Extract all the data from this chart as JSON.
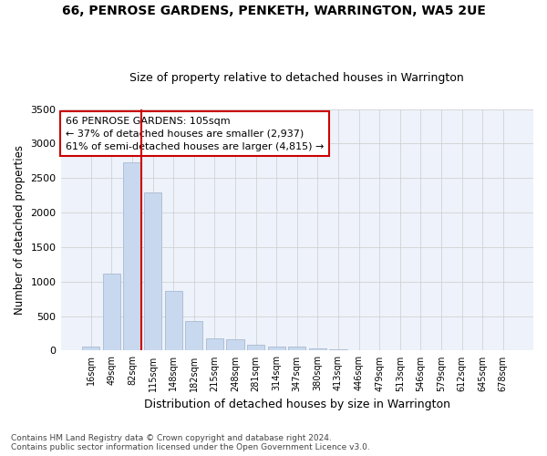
{
  "title": "66, PENROSE GARDENS, PENKETH, WARRINGTON, WA5 2UE",
  "subtitle": "Size of property relative to detached houses in Warrington",
  "xlabel": "Distribution of detached houses by size in Warrington",
  "ylabel": "Number of detached properties",
  "bar_color": "#c8d8ee",
  "bar_edgecolor": "#aabbd0",
  "grid_color": "#cccccc",
  "bg_color": "#eef2fa",
  "categories": [
    "16sqm",
    "49sqm",
    "82sqm",
    "115sqm",
    "148sqm",
    "182sqm",
    "215sqm",
    "248sqm",
    "281sqm",
    "314sqm",
    "347sqm",
    "380sqm",
    "413sqm",
    "446sqm",
    "479sqm",
    "513sqm",
    "546sqm",
    "579sqm",
    "612sqm",
    "645sqm",
    "678sqm"
  ],
  "values": [
    55,
    1110,
    2730,
    2290,
    870,
    430,
    175,
    165,
    90,
    60,
    55,
    35,
    25,
    0,
    0,
    0,
    0,
    0,
    0,
    0,
    0
  ],
  "property_bin_index": 2,
  "vline_color": "#cc0000",
  "annotation_text": "66 PENROSE GARDENS: 105sqm\n← 37% of detached houses are smaller (2,937)\n61% of semi-detached houses are larger (4,815) →",
  "annotation_box_color": "#cc0000",
  "ylim": [
    0,
    3500
  ],
  "yticks": [
    0,
    500,
    1000,
    1500,
    2000,
    2500,
    3000,
    3500
  ],
  "footnote": "Contains HM Land Registry data © Crown copyright and database right 2024.\nContains public sector information licensed under the Open Government Licence v3.0."
}
